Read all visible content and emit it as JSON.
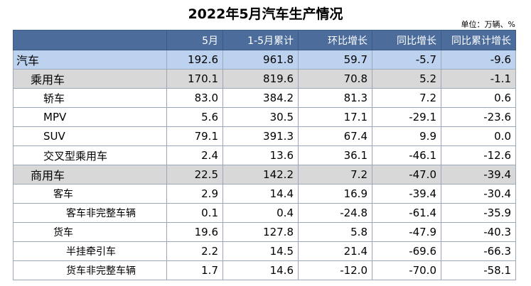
{
  "title": "2022年5月汽车生产情况",
  "unit": "单位：万辆、%",
  "headers": [
    "",
    "5月",
    "1-5月累计",
    "环比增长",
    "同比增长",
    "同比累计增长"
  ],
  "rows": [
    {
      "name": "汽车",
      "level": 0,
      "values": [
        "192.6",
        "961.8",
        "59.7",
        "-5.7",
        "-9.6"
      ]
    },
    {
      "name": "乘用车",
      "level": 1,
      "values": [
        "170.1",
        "819.6",
        "70.8",
        "5.2",
        "-1.1"
      ]
    },
    {
      "name": "轿车",
      "level": 2,
      "values": [
        "83.0",
        "384.2",
        "81.3",
        "7.2",
        "0.6"
      ]
    },
    {
      "name": "MPV",
      "level": 2,
      "values": [
        "5.6",
        "30.5",
        "17.1",
        "-29.1",
        "-23.6"
      ]
    },
    {
      "name": "SUV",
      "level": 2,
      "values": [
        "79.1",
        "391.3",
        "67.4",
        "9.9",
        "0.0"
      ]
    },
    {
      "name": "交叉型乘用车",
      "level": 2,
      "values": [
        "2.4",
        "13.6",
        "36.1",
        "-46.1",
        "-12.6"
      ]
    },
    {
      "name": "商用车",
      "level": 1,
      "values": [
        "22.5",
        "142.2",
        "7.2",
        "-47.0",
        "-39.4"
      ]
    },
    {
      "name": "客车",
      "level": 3,
      "values": [
        "2.9",
        "14.4",
        "16.9",
        "-39.4",
        "-30.4"
      ]
    },
    {
      "name": "客车非完整车辆",
      "level": 4,
      "values": [
        "0.1",
        "0.4",
        "-24.8",
        "-61.4",
        "-35.9"
      ]
    },
    {
      "name": "货车",
      "level": 3,
      "values": [
        "19.6",
        "127.8",
        "5.8",
        "-47.9",
        "-40.3"
      ]
    },
    {
      "name": "半挂牵引车",
      "level": 4,
      "values": [
        "2.2",
        "14.5",
        "21.4",
        "-69.6",
        "-66.3"
      ]
    },
    {
      "name": "货车非完整车辆",
      "level": 4,
      "values": [
        "1.7",
        "14.6",
        "-12.0",
        "-70.0",
        "-58.1"
      ]
    }
  ]
}
